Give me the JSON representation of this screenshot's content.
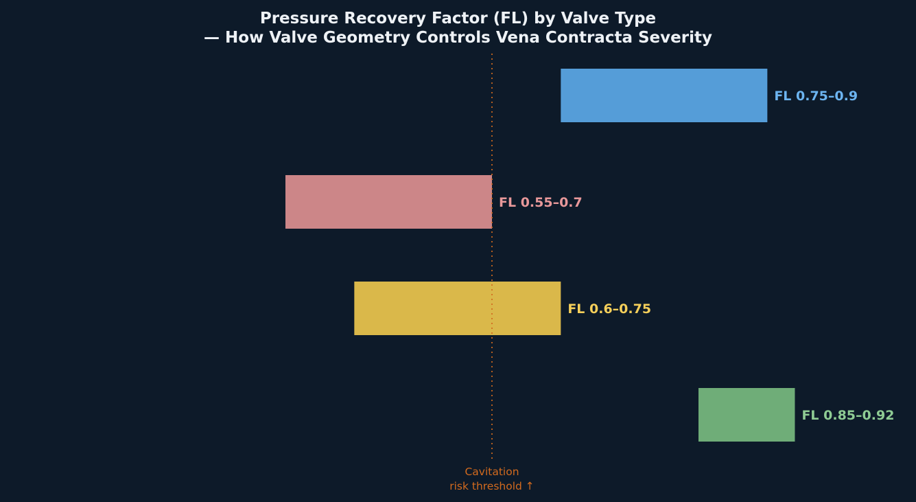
{
  "chart_data": {
    "type": "bar",
    "orientation": "horizontal-range",
    "title_line1": "Pressure Recovery Factor (FL) by Valve Type",
    "title_line2": "— How Valve Geometry Controls Vena Contracta Severity",
    "xlabel": "",
    "ylabel": "",
    "grid": false,
    "xlim": [
      0.4,
      1.0
    ],
    "series": [
      {
        "low": 0.75,
        "high": 0.9,
        "label": "FL 0.75–0.9",
        "bar_color": "#559dd8",
        "label_color": "#6cb4f0"
      },
      {
        "low": 0.55,
        "high": 0.7,
        "label": "FL 0.55–0.7",
        "bar_color": "#cc8688",
        "label_color": "#e8989a"
      },
      {
        "low": 0.6,
        "high": 0.75,
        "label": "FL 0.6–0.75",
        "bar_color": "#dab84a",
        "label_color": "#f5cf5a"
      },
      {
        "low": 0.85,
        "high": 0.92,
        "label": "FL 0.85–0.92",
        "bar_color": "#6fad78",
        "label_color": "#8fcc94"
      }
    ],
    "threshold": {
      "value": 0.7,
      "label_line1": "Cavitation",
      "label_line2": "risk threshold ↑",
      "color": "#d26a1e"
    }
  }
}
